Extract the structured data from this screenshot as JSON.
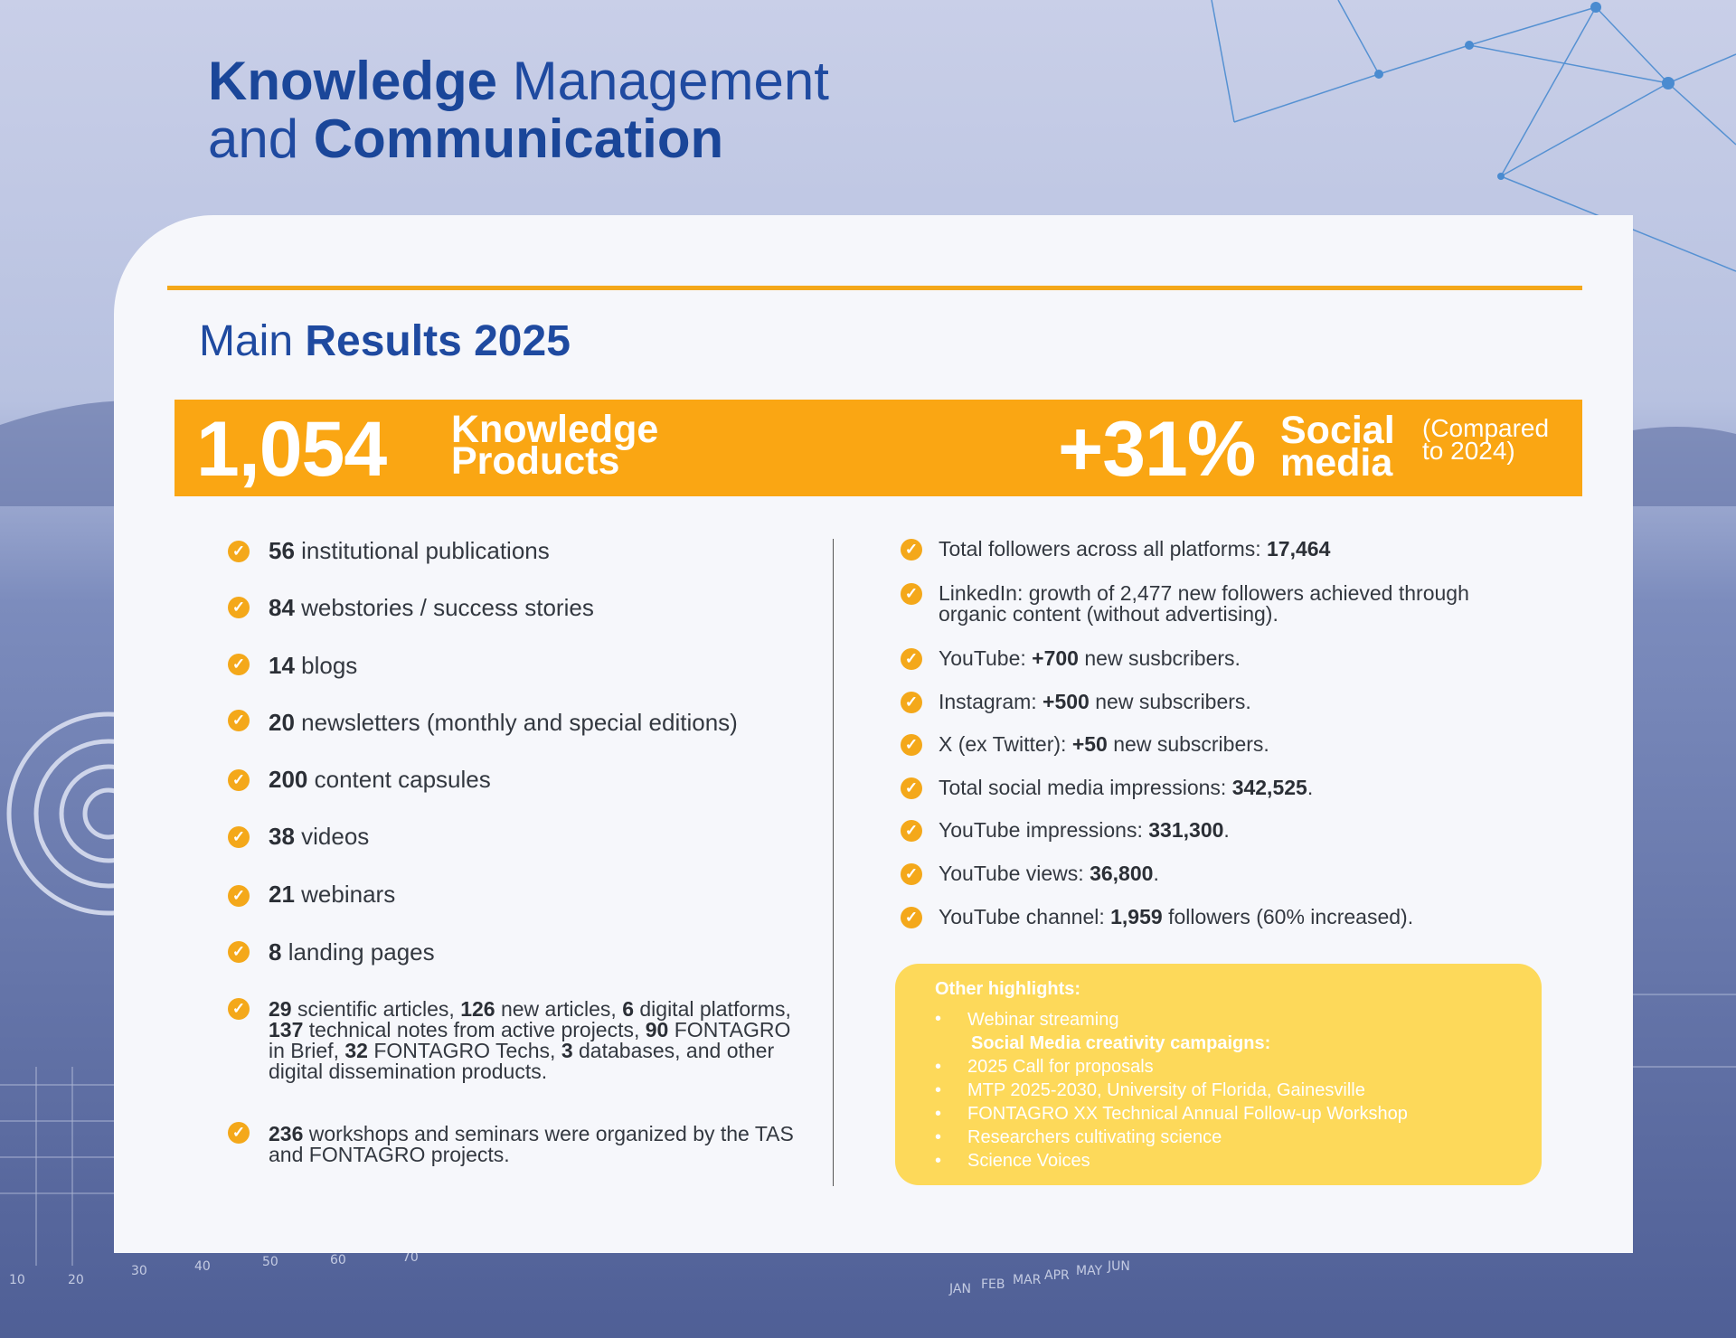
{
  "header": {
    "title_line1_bold": "Knowledge",
    "title_line1_rest": " Management",
    "title_line2_pre": "and ",
    "title_line2_bold": "Communication"
  },
  "section": {
    "title_plain": "Main ",
    "title_bold": "Results 2025"
  },
  "banner": {
    "products_number": "1,054",
    "products_label_line1": "Knowledge",
    "products_label_line2": "Products",
    "social_number": "+31%",
    "social_label_line1": "Social",
    "social_label_line2": "media",
    "social_note_line1": "(Compared",
    "social_note_line2": "to 2024)"
  },
  "left_items": [
    {
      "bold": "56",
      "text": " institutional publications"
    },
    {
      "bold": "84",
      "text": " webstories / success stories"
    },
    {
      "bold": "14",
      "text": " blogs"
    },
    {
      "bold": "20",
      "text": " newsletters (monthly and special editions)"
    },
    {
      "bold": "200",
      "text": " content capsules"
    },
    {
      "bold": "38",
      "text": " videos"
    },
    {
      "bold": "21",
      "text": " webinars"
    },
    {
      "bold": "8",
      "text": " landing pages"
    }
  ],
  "left_long_1": {
    "b1": "29",
    "t1": " scientific articles, ",
    "b2": "126",
    "t2": " new articles, ",
    "b3": "6",
    "t3": " digital platforms, ",
    "b4": "137",
    "t4": " technical notes from active projects, ",
    "b5": "90",
    "t5": " FONTAGRO in Brief, ",
    "b6": "32",
    "t6": " FONTAGRO Techs, ",
    "b7": "3",
    "t7": " databases, and other digital dissemination products."
  },
  "left_long_2": {
    "bold": "236",
    "text": " workshops and seminars were organized by the TAS and FONTAGRO projects."
  },
  "right_items": [
    {
      "pre": "Total followers across all platforms: ",
      "bold": "17,464",
      "post": ""
    },
    {
      "pre": "LinkedIn: growth of 2,477 new followers achieved through organic content (without advertising).",
      "bold": "",
      "post": ""
    },
    {
      "pre": "YouTube: ",
      "bold": "+700",
      "post": " new susbcribers."
    },
    {
      "pre": "Instagram: ",
      "bold": "+500",
      "post": " new subscribers."
    },
    {
      "pre": "X (ex Twitter): ",
      "bold": "+50",
      "post": " new subscribers."
    },
    {
      "pre": "Total social media impressions: ",
      "bold": "342,525",
      "post": "."
    },
    {
      "pre": "YouTube impressions: ",
      "bold": "331,300",
      "post": "."
    },
    {
      "pre": "YouTube views: ",
      "bold": "36,800",
      "post": "."
    },
    {
      "pre": "YouTube channel: ",
      "bold": "1,959",
      "post": " followers (60% increased)."
    }
  ],
  "highlights": {
    "title": "Other highlights:",
    "bullet": "•",
    "item1": "Webinar streaming",
    "subheading": "Social Media creativity campaigns:",
    "items": [
      "2025 Call for proposals",
      "MTP 2025-2030, University of Florida, Gainesville",
      "FONTAGRO XX Technical Annual Follow-up Workshop",
      "Researchers cultivating science",
      "Science Voices"
    ]
  },
  "check_icon": "✓",
  "colors": {
    "primary_blue": "#1f4aa0",
    "accent_orange": "#faa613",
    "highlight_yellow": "#fdd95a",
    "card_bg": "#f6f7fb"
  }
}
